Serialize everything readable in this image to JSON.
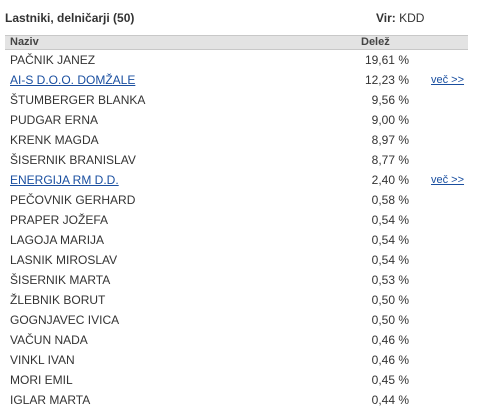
{
  "header": {
    "title": "Lastniki, delničarji (50)",
    "source_label": "Vir:",
    "source": "KDD"
  },
  "table": {
    "columns": [
      "Naziv",
      "Delež"
    ],
    "rows": [
      {
        "name": "PAČNIK JANEZ",
        "share": "19,61 %"
      },
      {
        "name": "AI-S D.O.O. DOMŽALE",
        "share": "12,23 %",
        "more": "več >>"
      },
      {
        "name": "ŠTUMBERGER BLANKA",
        "share": "9,56 %"
      },
      {
        "name": "PUDGAR ERNA",
        "share": "9,00 %"
      },
      {
        "name": "KRENK MAGDA",
        "share": "8,97 %"
      },
      {
        "name": "ŠISERNIK BRANISLAV",
        "share": "8,77 %"
      },
      {
        "name": "ENERGIJA RM D.D.",
        "share": "2,40 %",
        "more": "več >>"
      },
      {
        "name": "PEČOVNIK GERHARD",
        "share": "0,58 %"
      },
      {
        "name": "PRAPER JOŽEFA",
        "share": "0,54 %"
      },
      {
        "name": "LAGOJA MARIJA",
        "share": "0,54 %"
      },
      {
        "name": "LASNIK MIROSLAV",
        "share": "0,54 %"
      },
      {
        "name": "ŠISERNIK MARTA",
        "share": "0,53 %"
      },
      {
        "name": "ŽLEBNIK BORUT",
        "share": "0,50 %"
      },
      {
        "name": "GOGNJAVEC IVICA",
        "share": "0,50 %"
      },
      {
        "name": "VAČUN NADA",
        "share": "0,46 %"
      },
      {
        "name": "VINKL IVAN",
        "share": "0,46 %"
      },
      {
        "name": "MORI EMIL",
        "share": "0,45 %"
      },
      {
        "name": "IGLAR MARTA",
        "share": "0,44 %"
      }
    ]
  }
}
